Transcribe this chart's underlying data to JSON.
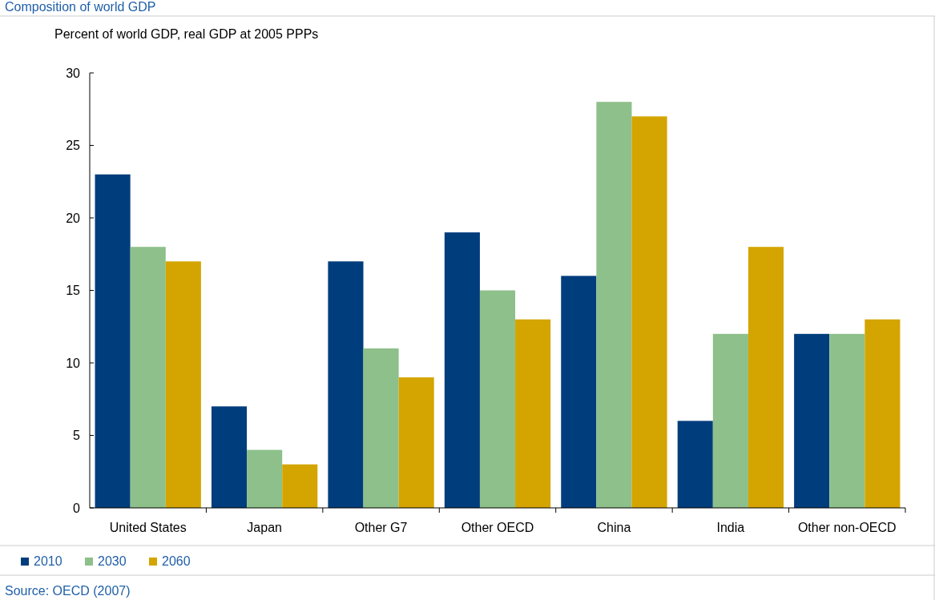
{
  "chart_data": {
    "type": "bar",
    "title": "Composition of world GDP",
    "ylabel": "Percent of world GDP, real GDP at 2005 PPPs",
    "categories": [
      "United States",
      "Japan",
      "Other G7",
      "Other OECD",
      "China",
      "India",
      "Other non-OECD"
    ],
    "series": [
      {
        "name": "2010",
        "color": "#003d7d",
        "values": [
          23,
          7,
          17,
          19,
          16,
          6,
          12
        ]
      },
      {
        "name": "2030",
        "color": "#8dc08a",
        "values": [
          18,
          4,
          11,
          15,
          28,
          12,
          12
        ]
      },
      {
        "name": "2060",
        "color": "#d4a500",
        "values": [
          17,
          3,
          9,
          13,
          27,
          18,
          13
        ]
      }
    ],
    "ylim": [
      0,
      30
    ],
    "yticks": [
      0,
      5,
      10,
      15,
      20,
      25,
      30
    ],
    "grid": false,
    "legend": "bottom left",
    "annotations": [
      "Source: OECD (2007)"
    ]
  }
}
